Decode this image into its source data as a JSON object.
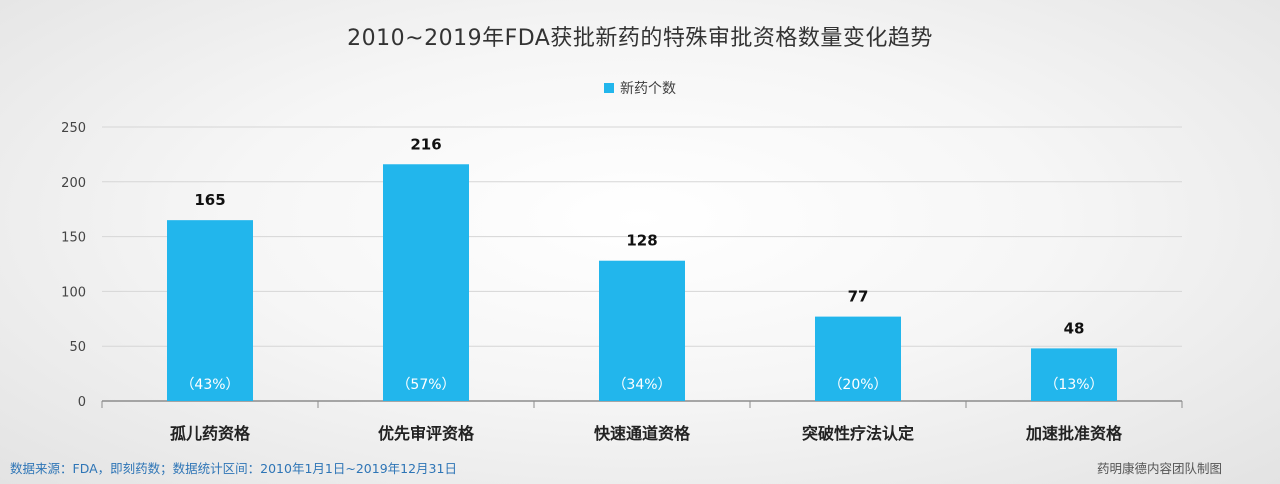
{
  "chart_data": {
    "type": "bar",
    "title": "2010~2019年FDA获批新药的特殊审批资格数量变化趋势",
    "categories": [
      "孤儿药资格",
      "优先审评资格",
      "快速通道资格",
      "突破性疗法认定",
      "加速批准资格"
    ],
    "series": [
      {
        "name": "新药个数",
        "values": [
          165,
          216,
          128,
          77,
          48
        ],
        "percent_labels": [
          "（43%）",
          "（57%）",
          "（34%）",
          "（20%）",
          "（13%）"
        ]
      }
    ],
    "y_ticks": [
      "0",
      "50",
      "100",
      "150",
      "200",
      "250"
    ],
    "ylim": [
      0,
      250
    ],
    "grid": true,
    "legend_position": "top-center",
    "bar_color": "#22b6ec",
    "grid_color": "#d6d6d6"
  },
  "footer": {
    "source": "数据来源：FDA，即刻药数；数据统计区间：2010年1月1日~2019年12月31日",
    "source_color": "#2e75b6",
    "credit": "药明康德内容团队制图"
  }
}
